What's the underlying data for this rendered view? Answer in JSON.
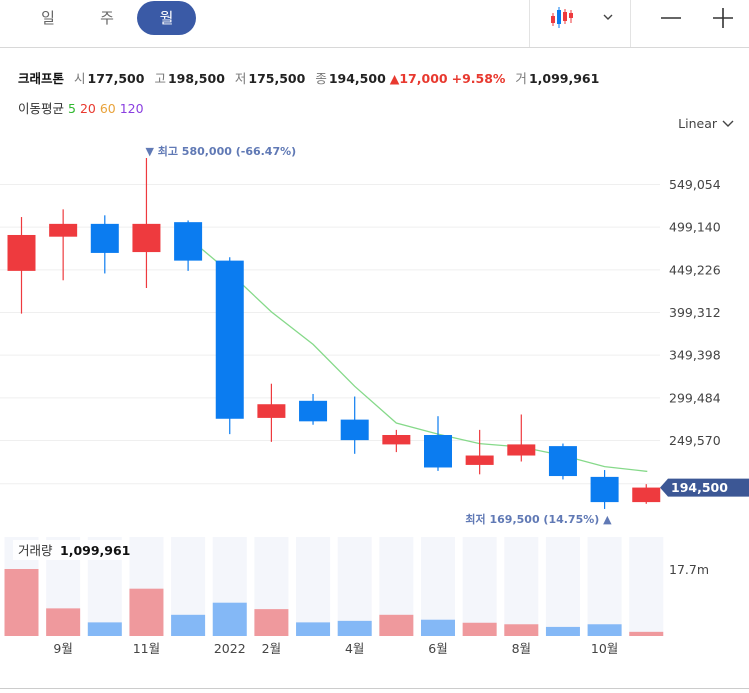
{
  "tabs": [
    {
      "label": "일",
      "active": false
    },
    {
      "label": "주",
      "active": false
    },
    {
      "label": "월",
      "active": true
    }
  ],
  "toolbar": {
    "chart_type_icon": "candlestick-icon",
    "dropdown_icon": "chevron-down-icon",
    "minus_icon": "zoom-out-icon",
    "plus_icon": "zoom-in-icon"
  },
  "stock": {
    "name": "크래프톤",
    "open_label": "시",
    "open": "177,500",
    "high_label": "고",
    "high": "198,500",
    "low_label": "저",
    "low": "175,500",
    "close_label": "종",
    "close": "194,500",
    "change": "▲17,000",
    "change_pct": "+9.58%",
    "volume_label": "거",
    "volume": "1,099,961"
  },
  "moving_average": {
    "label": "이동평균",
    "periods": [
      {
        "value": "5",
        "color": "#2fb82f"
      },
      {
        "value": "20",
        "color": "#e8392f"
      },
      {
        "value": "60",
        "color": "#e8a23a"
      },
      {
        "value": "120",
        "color": "#8a3fe0"
      }
    ]
  },
  "scale_label": "Linear",
  "colors": {
    "up": "#ee3a3e",
    "down": "#0b7cf0",
    "up_volume": "#ef999d",
    "down_volume": "#84b8f6",
    "ma5": "#86d98a",
    "price_tag": "#3c5795",
    "annotation": "#6079b5"
  },
  "chart_data": {
    "type": "candlestick",
    "y_ticks": [
      "549,054",
      "499,140",
      "449,226",
      "399,312",
      "349,398",
      "299,484",
      "249,570"
    ],
    "y_tick_values": [
      549054,
      499140,
      449226,
      399312,
      349398,
      299484,
      249570
    ],
    "x_tick_labels": [
      "9월",
      "11월",
      "2022",
      "2월",
      "4월",
      "6월",
      "8월",
      "10월"
    ],
    "x_tick_index": [
      1,
      3,
      5,
      6,
      8,
      10,
      12,
      14
    ],
    "candles": [
      {
        "open": 448000,
        "high": 511000,
        "low": 398000,
        "close": 490000
      },
      {
        "open": 488000,
        "high": 520000,
        "low": 437000,
        "close": 503000
      },
      {
        "open": 503000,
        "high": 513000,
        "low": 445000,
        "close": 469000
      },
      {
        "open": 470000,
        "high": 580000,
        "low": 428000,
        "close": 503000
      },
      {
        "open": 505000,
        "high": 507000,
        "low": 448000,
        "close": 460000
      },
      {
        "open": 460000,
        "high": 464000,
        "low": 257000,
        "close": 275000
      },
      {
        "open": 276000,
        "high": 316000,
        "low": 248000,
        "close": 292000
      },
      {
        "open": 296000,
        "high": 304000,
        "low": 268000,
        "close": 272000
      },
      {
        "open": 274000,
        "high": 301000,
        "low": 234000,
        "close": 250000
      },
      {
        "open": 245000,
        "high": 262000,
        "low": 236000,
        "close": 256000
      },
      {
        "open": 256000,
        "high": 278000,
        "low": 214000,
        "close": 218000
      },
      {
        "open": 221000,
        "high": 262000,
        "low": 210000,
        "close": 232000
      },
      {
        "open": 232000,
        "high": 280000,
        "low": 225000,
        "close": 245000
      },
      {
        "open": 243000,
        "high": 246000,
        "low": 204000,
        "close": 208000
      },
      {
        "open": 207000,
        "high": 215000,
        "low": 169500,
        "close": 177500
      },
      {
        "open": 177500,
        "high": 198500,
        "low": 175500,
        "close": 194500
      }
    ],
    "ma5": [
      null,
      null,
      null,
      null,
      487000,
      446000,
      400000,
      362000,
      313000,
      270000,
      257000,
      246000,
      242000,
      232000,
      219000,
      213500
    ],
    "volumes": [
      17.7,
      7.3,
      3.6,
      12.5,
      5.6,
      8.8,
      7.1,
      3.6,
      4.0,
      5.6,
      4.3,
      3.5,
      3.1,
      2.4,
      3.1,
      1.1
    ],
    "volume_tick": "17.7m",
    "volume_max": 17.7,
    "last_price_tag": "194,500",
    "high_annotation": "▼ 최고 580,000 (-66.47%)",
    "low_annotation": "최저 169,500 (14.75%) ▲",
    "volume_label": "거래량",
    "volume_value": "1,099,961"
  }
}
